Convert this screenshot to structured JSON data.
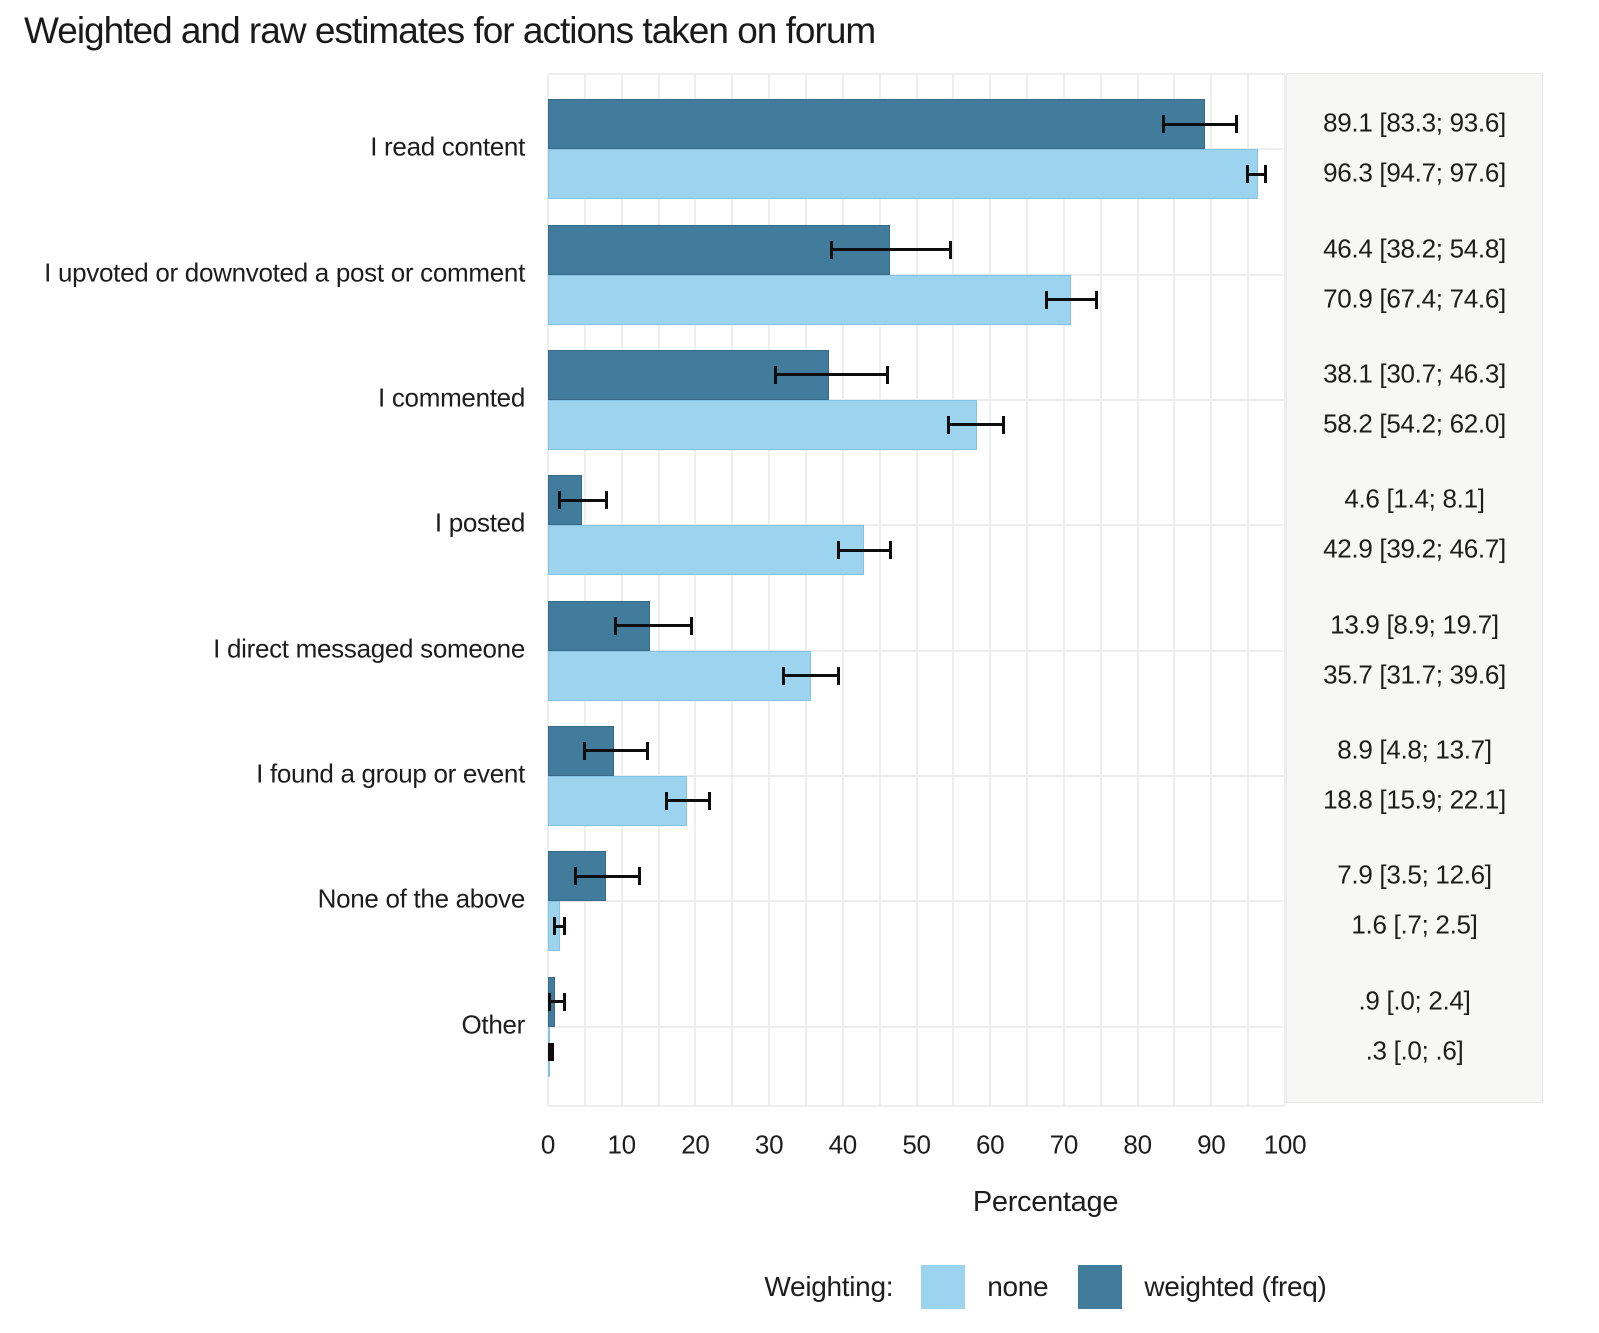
{
  "title": "Weighted and raw estimates for actions taken on forum",
  "colors": {
    "none": "#9cd3ef",
    "weighted": "#417c9c",
    "grid": "#eeeeee",
    "panel_bg": "#f7f8f5",
    "errorbar": "#0d0d0d",
    "text": "#1d1d1d"
  },
  "legend": {
    "title": "Weighting:",
    "items": [
      {
        "label": "none",
        "color_key": "none"
      },
      {
        "label": "weighted (freq)",
        "color_key": "weighted"
      }
    ]
  },
  "x_axis": {
    "label": "Percentage",
    "range": [
      0,
      100
    ],
    "tick_labels": [
      "0",
      "10",
      "20",
      "30",
      "40",
      "50",
      "60",
      "70",
      "80",
      "90",
      "100"
    ],
    "tick_values": [
      0,
      10,
      20,
      30,
      40,
      50,
      60,
      70,
      80,
      90,
      100
    ],
    "minor_grid_step": 5
  },
  "chart_data": {
    "type": "bar",
    "orientation": "horizontal",
    "title": "Weighted and raw estimates for actions taken on forum",
    "xlabel": "Percentage",
    "xlim": [
      0,
      100
    ],
    "grid": true,
    "legend_position": "bottom",
    "series_order": [
      "weighted",
      "none"
    ],
    "categories": [
      {
        "label": "I read content",
        "weighted": {
          "value": 89.1,
          "ci": [
            83.3,
            93.6
          ],
          "text": "89.1 [83.3; 93.6]"
        },
        "none": {
          "value": 96.3,
          "ci": [
            94.7,
            97.6
          ],
          "text": "96.3 [94.7; 97.6]"
        }
      },
      {
        "label": "I upvoted or downvoted a post or comment",
        "weighted": {
          "value": 46.4,
          "ci": [
            38.2,
            54.8
          ],
          "text": "46.4 [38.2; 54.8]"
        },
        "none": {
          "value": 70.9,
          "ci": [
            67.4,
            74.6
          ],
          "text": "70.9 [67.4; 74.6]"
        }
      },
      {
        "label": "I commented",
        "weighted": {
          "value": 38.1,
          "ci": [
            30.7,
            46.3
          ],
          "text": "38.1 [30.7; 46.3]"
        },
        "none": {
          "value": 58.2,
          "ci": [
            54.2,
            62.0
          ],
          "text": "58.2 [54.2; 62.0]"
        }
      },
      {
        "label": "I posted",
        "weighted": {
          "value": 4.6,
          "ci": [
            1.4,
            8.1
          ],
          "text": "4.6 [1.4; 8.1]"
        },
        "none": {
          "value": 42.9,
          "ci": [
            39.2,
            46.7
          ],
          "text": "42.9 [39.2; 46.7]"
        }
      },
      {
        "label": "I direct messaged someone",
        "weighted": {
          "value": 13.9,
          "ci": [
            8.9,
            19.7
          ],
          "text": "13.9 [8.9; 19.7]"
        },
        "none": {
          "value": 35.7,
          "ci": [
            31.7,
            39.6
          ],
          "text": "35.7 [31.7; 39.6]"
        }
      },
      {
        "label": "I found a group or event",
        "weighted": {
          "value": 8.9,
          "ci": [
            4.8,
            13.7
          ],
          "text": "8.9 [4.8; 13.7]"
        },
        "none": {
          "value": 18.8,
          "ci": [
            15.9,
            22.1
          ],
          "text": "18.8 [15.9; 22.1]"
        }
      },
      {
        "label": "None of the above",
        "weighted": {
          "value": 7.9,
          "ci": [
            3.5,
            12.6
          ],
          "text": "7.9 [3.5; 12.6]"
        },
        "none": {
          "value": 1.6,
          "ci": [
            0.7,
            2.5
          ],
          "text": "1.6 [.7; 2.5]"
        }
      },
      {
        "label": "Other",
        "weighted": {
          "value": 0.9,
          "ci": [
            0.0,
            2.4
          ],
          "text": ".9 [.0; 2.4]"
        },
        "none": {
          "value": 0.3,
          "ci": [
            0.0,
            0.6
          ],
          "text": ".3 [.0; .6]"
        }
      }
    ]
  }
}
